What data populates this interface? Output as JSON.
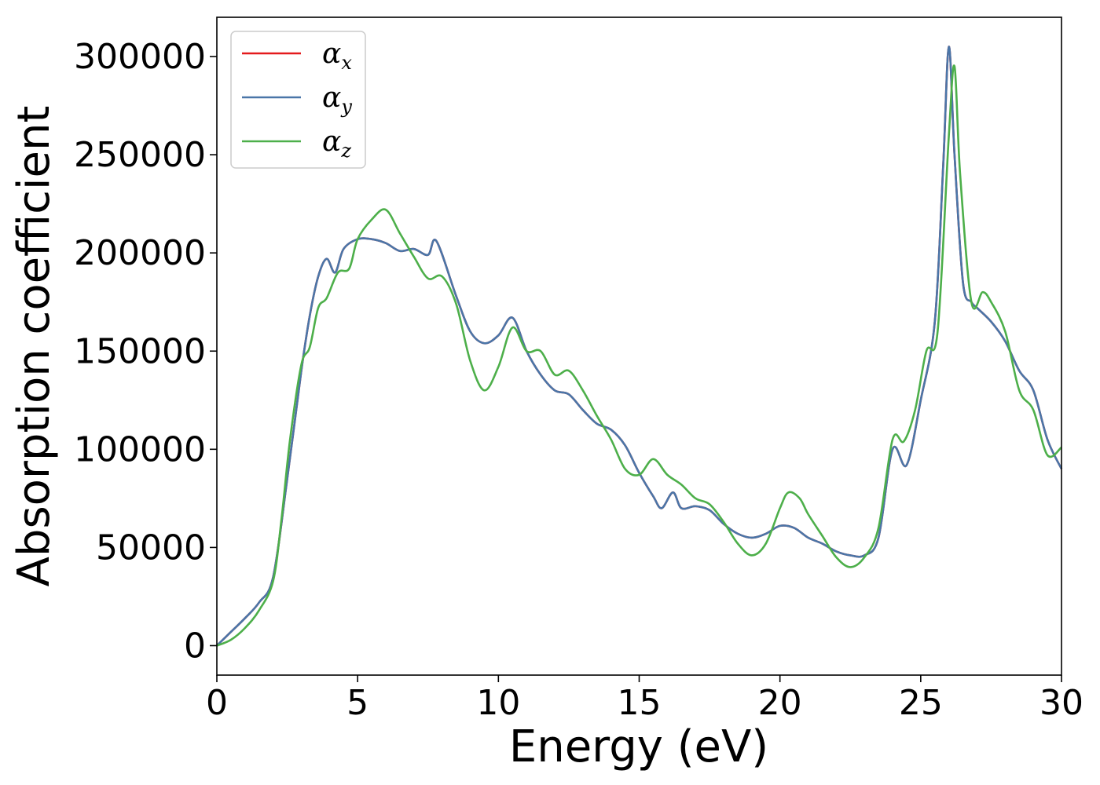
{
  "chart_data": {
    "type": "line",
    "xlabel": "Energy (eV)",
    "ylabel": "Absorption coefficient",
    "xlim": [
      0,
      30
    ],
    "ylim": [
      -15000,
      320000
    ],
    "grid": false,
    "legend_placement": "top-left",
    "xticks": [
      0,
      5,
      10,
      15,
      20,
      25,
      30
    ],
    "xtick_labels": [
      "0",
      "5",
      "10",
      "15",
      "20",
      "25",
      "30"
    ],
    "yticks": [
      0,
      50000,
      100000,
      150000,
      200000,
      250000,
      300000
    ],
    "ytick_labels": [
      "0",
      "50000",
      "100000",
      "150000",
      "200000",
      "250000",
      "300000"
    ],
    "series": [
      {
        "name": "αx",
        "legend_symbol": "α",
        "legend_sub": "x",
        "color": "#e41a1c",
        "x": [
          0,
          0.5,
          1,
          1.5,
          2,
          2.5,
          3,
          3.3,
          3.6,
          3.9,
          4.2,
          4.5,
          5,
          5.5,
          6,
          6.5,
          7,
          7.5,
          7.8,
          8.5,
          9,
          9.5,
          10,
          10.5,
          11,
          11.5,
          12,
          12.5,
          13,
          13.5,
          14,
          14.5,
          15,
          15.5,
          15.8,
          16.2,
          16.5,
          17,
          17.5,
          18,
          18.5,
          19,
          19.5,
          20,
          20.5,
          21,
          21.5,
          22,
          22.5,
          23,
          23.5,
          24,
          24.5,
          25,
          25.5,
          25.8,
          26,
          26.2,
          26.5,
          26.8,
          27,
          27.5,
          28,
          28.5,
          29,
          29.5,
          30
        ],
        "y": [
          0,
          7000,
          14000,
          22000,
          35000,
          85000,
          140000,
          168000,
          188000,
          197000,
          190000,
          202000,
          207000,
          207000,
          205000,
          201000,
          202000,
          199000,
          206000,
          178000,
          160000,
          154000,
          158000,
          167000,
          150000,
          138000,
          130000,
          128000,
          120000,
          113000,
          110000,
          102000,
          88000,
          76000,
          70000,
          78000,
          70000,
          71000,
          69000,
          62000,
          57000,
          55000,
          57000,
          61000,
          60000,
          55000,
          52000,
          48000,
          46000,
          46000,
          55000,
          100000,
          92000,
          125000,
          165000,
          245000,
          305000,
          250000,
          185000,
          175000,
          172000,
          165000,
          155000,
          140000,
          130000,
          105000,
          90000
        ]
      },
      {
        "name": "αy",
        "legend_symbol": "α",
        "legend_sub": "y",
        "color": "#4a76a8",
        "x": [
          0,
          0.5,
          1,
          1.5,
          2,
          2.5,
          3,
          3.3,
          3.6,
          3.9,
          4.2,
          4.5,
          5,
          5.5,
          6,
          6.5,
          7,
          7.5,
          7.8,
          8.5,
          9,
          9.5,
          10,
          10.5,
          11,
          11.5,
          12,
          12.5,
          13,
          13.5,
          14,
          14.5,
          15,
          15.5,
          15.8,
          16.2,
          16.5,
          17,
          17.5,
          18,
          18.5,
          19,
          19.5,
          20,
          20.5,
          21,
          21.5,
          22,
          22.5,
          23,
          23.5,
          24,
          24.5,
          25,
          25.5,
          25.8,
          26,
          26.2,
          26.5,
          26.8,
          27,
          27.5,
          28,
          28.5,
          29,
          29.5,
          30
        ],
        "y": [
          0,
          7000,
          14000,
          22000,
          35000,
          85000,
          140000,
          168000,
          188000,
          197000,
          190000,
          202000,
          207000,
          207000,
          205000,
          201000,
          202000,
          199000,
          206000,
          178000,
          160000,
          154000,
          158000,
          167000,
          150000,
          138000,
          130000,
          128000,
          120000,
          113000,
          110000,
          102000,
          88000,
          76000,
          70000,
          78000,
          70000,
          71000,
          69000,
          62000,
          57000,
          55000,
          57000,
          61000,
          60000,
          55000,
          52000,
          48000,
          46000,
          46000,
          55000,
          100000,
          92000,
          125000,
          165000,
          245000,
          305000,
          250000,
          185000,
          175000,
          172000,
          165000,
          155000,
          140000,
          130000,
          105000,
          90000
        ]
      },
      {
        "name": "αz",
        "legend_symbol": "α",
        "legend_sub": "z",
        "color": "#4daf4a",
        "x": [
          0,
          0.5,
          1,
          1.5,
          2,
          2.3,
          2.6,
          3,
          3.3,
          3.6,
          3.9,
          4.3,
          4.7,
          5,
          5.5,
          6,
          6.5,
          7,
          7.5,
          8,
          8.5,
          9,
          9.5,
          10,
          10.5,
          11,
          11.5,
          12,
          12.5,
          13,
          13.5,
          14,
          14.5,
          15,
          15.5,
          16,
          16.5,
          17,
          17.5,
          18,
          18.5,
          19,
          19.5,
          20,
          20.3,
          20.7,
          21,
          21.5,
          22,
          22.5,
          23,
          23.5,
          24,
          24.4,
          24.8,
          25.2,
          25.6,
          26,
          26.2,
          26.4,
          26.8,
          27.2,
          27.5,
          28,
          28.5,
          29,
          29.5,
          30
        ],
        "y": [
          0,
          3000,
          9000,
          18000,
          33000,
          65000,
          105000,
          143000,
          152000,
          172000,
          177000,
          190000,
          192000,
          207000,
          217000,
          222000,
          210000,
          198000,
          187000,
          188000,
          174000,
          145000,
          130000,
          142000,
          162000,
          150000,
          150000,
          138000,
          140000,
          130000,
          117000,
          105000,
          90000,
          87000,
          95000,
          87000,
          82000,
          75000,
          72000,
          63000,
          52000,
          46000,
          52000,
          70000,
          78000,
          75000,
          67000,
          56000,
          45000,
          40000,
          45000,
          60000,
          105000,
          104000,
          120000,
          150000,
          160000,
          260000,
          295000,
          240000,
          175000,
          180000,
          175000,
          160000,
          130000,
          120000,
          97000,
          101000
        ]
      }
    ]
  }
}
